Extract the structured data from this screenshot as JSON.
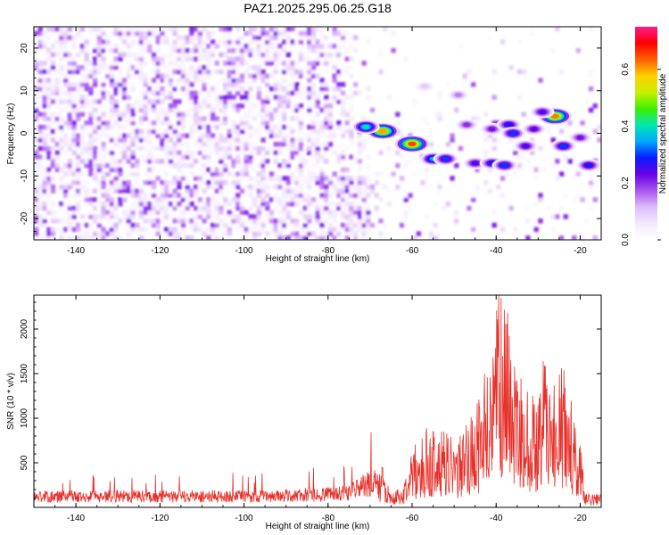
{
  "title": "PAZ1.2025.295.06.25.G18",
  "colors": {
    "snr_line": "#e8302a",
    "colorbar_stops": [
      "#ffffff",
      "#f4eaff",
      "#dcbcfa",
      "#a855f0",
      "#6a00e8",
      "#0a1cff",
      "#00a8ff",
      "#00e8b0",
      "#3cf000",
      "#c8f000",
      "#ffd000",
      "#ff6000",
      "#ff0000",
      "#ff1a8c"
    ]
  },
  "chart_data": [
    {
      "type": "heatmap",
      "title": "PAZ1.2025.295.06.25.G18",
      "xlabel": "Height of straight line (km)",
      "ylabel": "Frequency (Hz)",
      "xlim": [
        -150,
        -15
      ],
      "ylim": [
        -25,
        25
      ],
      "xticks": [
        -140,
        -120,
        -100,
        -80,
        -60,
        -40,
        -20
      ],
      "yticks": [
        -20,
        -10,
        0,
        10,
        20
      ],
      "colorbar": {
        "label": "Normalized spectral amplitude",
        "range": [
          0.0,
          0.75
        ],
        "ticks": [
          "0.0",
          "0.2",
          "0.4",
          "0.6"
        ]
      },
      "features": [
        {
          "x": -67,
          "y": 0.5,
          "amp": 0.6
        },
        {
          "x": -71,
          "y": 1.5,
          "amp": 0.4
        },
        {
          "x": -60,
          "y": -2.5,
          "amp": 0.65
        },
        {
          "x": -55,
          "y": -6,
          "amp": 0.35
        },
        {
          "x": -52,
          "y": -6,
          "amp": 0.3
        },
        {
          "x": -45,
          "y": -7,
          "amp": 0.25
        },
        {
          "x": -41,
          "y": -7,
          "amp": 0.28
        },
        {
          "x": -38,
          "y": -7.5,
          "amp": 0.3
        },
        {
          "x": -47,
          "y": 2,
          "amp": 0.2
        },
        {
          "x": -41,
          "y": 1,
          "amp": 0.22
        },
        {
          "x": -37,
          "y": 2,
          "amp": 0.28
        },
        {
          "x": -36,
          "y": 0,
          "amp": 0.3
        },
        {
          "x": -33,
          "y": -3,
          "amp": 0.25
        },
        {
          "x": -31,
          "y": 1,
          "amp": 0.24
        },
        {
          "x": -26,
          "y": 4,
          "amp": 0.62
        },
        {
          "x": -29,
          "y": 5,
          "amp": 0.25
        },
        {
          "x": -24,
          "y": -3,
          "amp": 0.3
        },
        {
          "x": -20,
          "y": -1,
          "amp": 0.22
        },
        {
          "x": -18,
          "y": -7.5,
          "amp": 0.28
        },
        {
          "x": -49,
          "y": 9,
          "amp": 0.15
        },
        {
          "x": -57,
          "y": 11,
          "amp": 0.1
        }
      ]
    },
    {
      "type": "line",
      "xlabel": "Height of straight line (km)",
      "ylabel": "SNR (10 * v/v)",
      "xlim": [
        -150,
        -15
      ],
      "ylim": [
        0,
        2380
      ],
      "xticks": [
        -140,
        -120,
        -100,
        -80,
        -60,
        -40,
        -20
      ],
      "yticks": [
        500,
        1000,
        1500,
        2000
      ],
      "series": [
        {
          "name": "SNR",
          "x": [
            -150,
            -140,
            -130,
            -120,
            -110,
            -100,
            -90,
            -80,
            -75,
            -70,
            -67,
            -65,
            -62,
            -60,
            -58,
            -56,
            -54,
            -52,
            -50,
            -48,
            -46,
            -44,
            -42,
            -40,
            -39,
            -38,
            -36,
            -34,
            -32,
            -30,
            -28,
            -26,
            -24,
            -22,
            -20,
            -19,
            -18,
            -15
          ],
          "values": [
            150,
            150,
            160,
            150,
            155,
            150,
            160,
            180,
            220,
            330,
            380,
            140,
            220,
            560,
            650,
            780,
            780,
            720,
            640,
            700,
            880,
            1050,
            1400,
            1800,
            2200,
            2050,
            1550,
            1300,
            1000,
            1200,
            1500,
            1150,
            1350,
            980,
            700,
            200,
            130,
            130
          ]
        }
      ]
    }
  ]
}
